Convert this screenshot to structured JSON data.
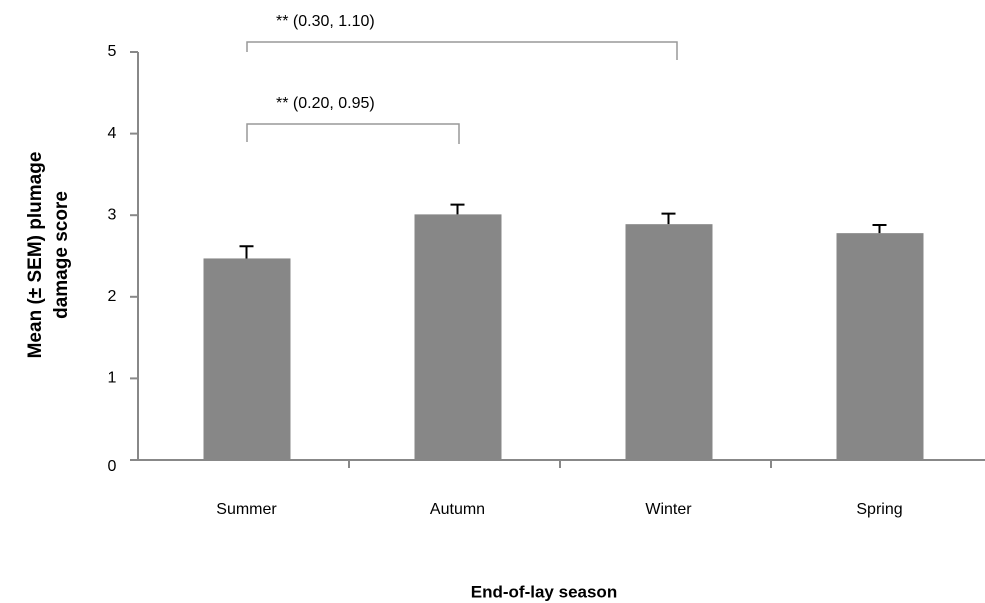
{
  "chart_data": {
    "type": "bar",
    "categories": [
      "Summer",
      "Autumn",
      "Winter",
      "Spring"
    ],
    "values": [
      2.47,
      3.01,
      2.89,
      2.78
    ],
    "errors": [
      0.15,
      0.12,
      0.13,
      0.1
    ],
    "color": "#878787",
    "ylim": [
      0,
      5
    ],
    "yticks": [
      0,
      1,
      2,
      3,
      4,
      5
    ],
    "y_label": [
      "Mean (± SEM) plumage",
      "damage score"
    ],
    "x_label": "End-of-lay season",
    "annotations": [
      "** (0.30, 1.10)",
      "** (0.20, 0.95)"
    ]
  }
}
